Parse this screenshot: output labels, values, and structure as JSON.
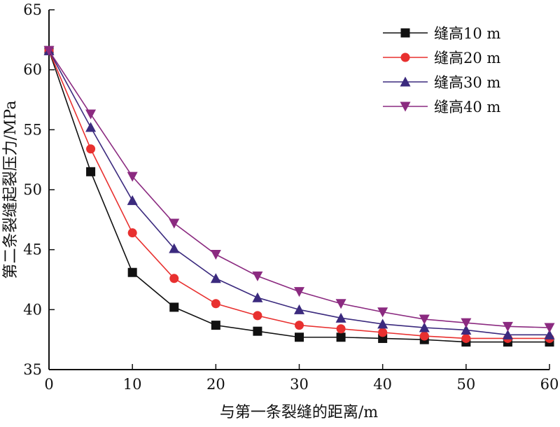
{
  "chart_data": {
    "type": "line",
    "title": "",
    "xlabel": "与第一条裂缝的距离/m",
    "ylabel": "第二条裂缝起裂压力/MPa",
    "xlim": [
      0,
      60
    ],
    "ylim": [
      35,
      65
    ],
    "xticks": [
      0,
      10,
      20,
      30,
      40,
      50,
      60
    ],
    "yticks": [
      35,
      40,
      45,
      50,
      55,
      60,
      65
    ],
    "legend_position": "top-right",
    "grid": false,
    "x": [
      0,
      5,
      10,
      15,
      20,
      25,
      30,
      35,
      40,
      45,
      50,
      55,
      60
    ],
    "series": [
      {
        "name": "缝高10 m",
        "marker": "square",
        "color": "#111111",
        "values": [
          61.6,
          51.5,
          43.1,
          40.2,
          38.7,
          38.2,
          37.7,
          37.7,
          37.6,
          37.5,
          37.3,
          37.3,
          37.3
        ]
      },
      {
        "name": "缝高20 m",
        "marker": "circle",
        "color": "#e8302f",
        "values": [
          61.6,
          53.4,
          46.4,
          42.6,
          40.5,
          39.5,
          38.7,
          38.4,
          38.1,
          37.8,
          37.6,
          37.6,
          37.6
        ]
      },
      {
        "name": "缝高30 m",
        "marker": "triangle-up",
        "color": "#3b2a7e",
        "values": [
          61.6,
          55.2,
          49.1,
          45.1,
          42.6,
          41.0,
          40.0,
          39.3,
          38.8,
          38.5,
          38.3,
          37.9,
          37.9
        ]
      },
      {
        "name": "缝高40 m",
        "marker": "triangle-down",
        "color": "#8b2a80",
        "values": [
          61.6,
          56.3,
          51.1,
          47.2,
          44.6,
          42.8,
          41.5,
          40.5,
          39.8,
          39.2,
          38.9,
          38.6,
          38.5
        ]
      }
    ]
  }
}
